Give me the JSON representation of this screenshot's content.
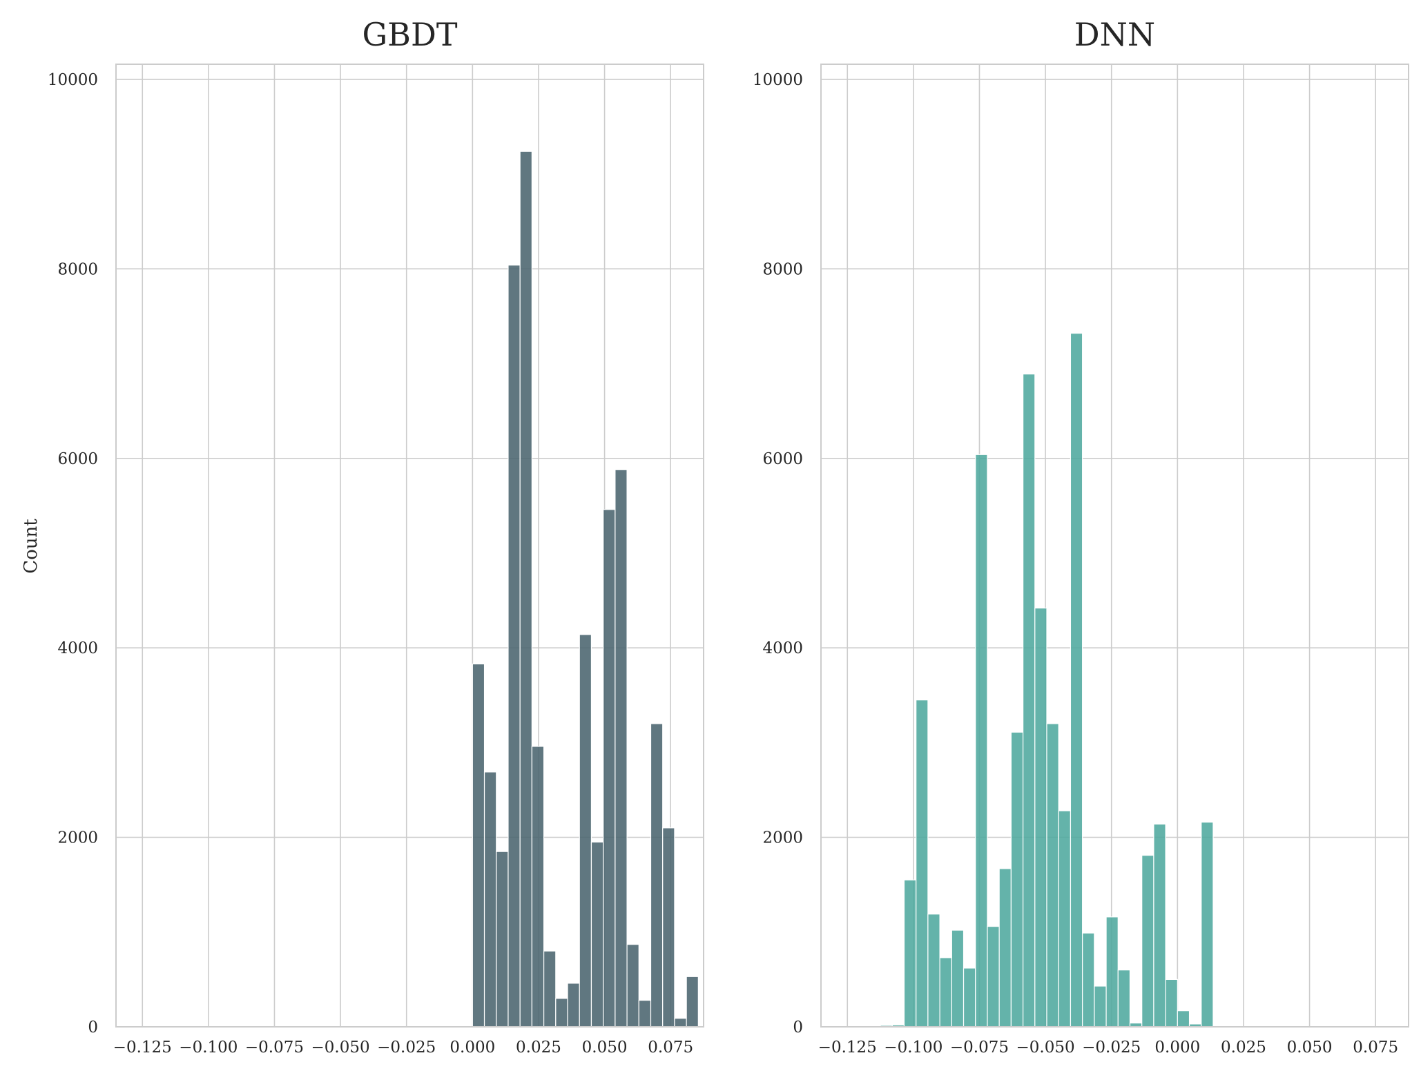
{
  "figure": {
    "ylabel": "Count"
  },
  "colors": {
    "gbdt_bar": "#4a646e",
    "dnn_bar": "#4fa99e",
    "grid": "#cccccc",
    "spine": "#cccccc",
    "text": "#262626",
    "background": "#ffffff"
  },
  "chart_data": [
    {
      "type": "bar",
      "title": "GBDT",
      "xlabel": "",
      "ylabel": "Count",
      "xlim": [
        -0.135,
        0.0875
      ],
      "ylim": [
        0,
        10160
      ],
      "grid": true,
      "x_ticks": [
        -0.125,
        -0.1,
        -0.075,
        -0.05,
        -0.025,
        0.0,
        0.025,
        0.05,
        0.075
      ],
      "x_tick_labels": [
        "−0.125",
        "−0.100",
        "−0.075",
        "−0.050",
        "−0.025",
        "0.000",
        "0.025",
        "0.050",
        "0.075"
      ],
      "y_ticks": [
        0,
        2000,
        4000,
        6000,
        8000,
        10000
      ],
      "y_tick_labels": [
        "0",
        "2000",
        "4000",
        "6000",
        "8000",
        "10000"
      ],
      "bin_width": 0.0045,
      "bin_starts": [
        0.0,
        0.0045,
        0.009,
        0.0135,
        0.018,
        0.0225,
        0.027,
        0.0315,
        0.036,
        0.0405,
        0.045,
        0.0495,
        0.054,
        0.0585,
        0.063,
        0.0675,
        0.072,
        0.0765,
        0.081
      ],
      "values": [
        3830,
        2690,
        1850,
        8040,
        9240,
        2960,
        800,
        300,
        460,
        4140,
        1950,
        5460,
        5880,
        870,
        280,
        3200,
        2100,
        90,
        530
      ]
    },
    {
      "type": "bar",
      "title": "DNN",
      "xlabel": "",
      "ylabel": "",
      "xlim": [
        -0.135,
        0.0875
      ],
      "ylim": [
        0,
        10160
      ],
      "grid": true,
      "x_ticks": [
        -0.125,
        -0.1,
        -0.075,
        -0.05,
        -0.025,
        0.0,
        0.025,
        0.05,
        0.075
      ],
      "x_tick_labels": [
        "−0.125",
        "−0.100",
        "−0.075",
        "−0.050",
        "−0.025",
        "0.000",
        "0.025",
        "0.050",
        "0.075"
      ],
      "y_ticks": [
        0,
        2000,
        4000,
        6000,
        8000,
        10000
      ],
      "y_tick_labels": [
        "0",
        "2000",
        "4000",
        "6000",
        "8000",
        "10000"
      ],
      "bin_width": 0.0045,
      "bin_starts": [
        -0.1215,
        -0.117,
        -0.1125,
        -0.108,
        -0.1035,
        -0.099,
        -0.0945,
        -0.09,
        -0.0855,
        -0.081,
        -0.0765,
        -0.072,
        -0.0675,
        -0.063,
        -0.0585,
        -0.054,
        -0.0495,
        -0.045,
        -0.0405,
        -0.036,
        -0.0315,
        -0.027,
        -0.0225,
        -0.018,
        -0.0135,
        -0.009,
        -0.0045,
        0.0,
        0.0045,
        0.009
      ],
      "values": [
        5,
        10,
        15,
        20,
        1550,
        3450,
        1190,
        730,
        1020,
        620,
        6040,
        1060,
        1670,
        3110,
        6890,
        4420,
        3200,
        2280,
        7320,
        990,
        430,
        1160,
        600,
        40,
        1810,
        2140,
        500,
        170,
        30,
        2160
      ]
    }
  ]
}
